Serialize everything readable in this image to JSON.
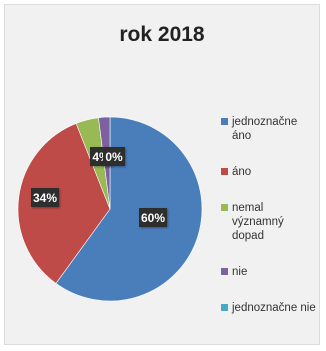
{
  "chart_data": {
    "type": "pie",
    "title": "rok 2018",
    "slices": [
      {
        "label": "jednoznačne áno",
        "value": 60,
        "display": "60%",
        "color": "#4a7ebb"
      },
      {
        "label": "áno",
        "value": 34,
        "display": "34%",
        "color": "#be4b48"
      },
      {
        "label": "nemal významný dopad",
        "value": 4,
        "display": "4%",
        "color": "#98b954"
      },
      {
        "label": "nie",
        "value": 2,
        "display": "",
        "color": "#7d60a0"
      },
      {
        "label": "jednoznačne nie",
        "value": 0,
        "display": "0%",
        "color": "#46aac5"
      }
    ],
    "legend_position": "right"
  }
}
